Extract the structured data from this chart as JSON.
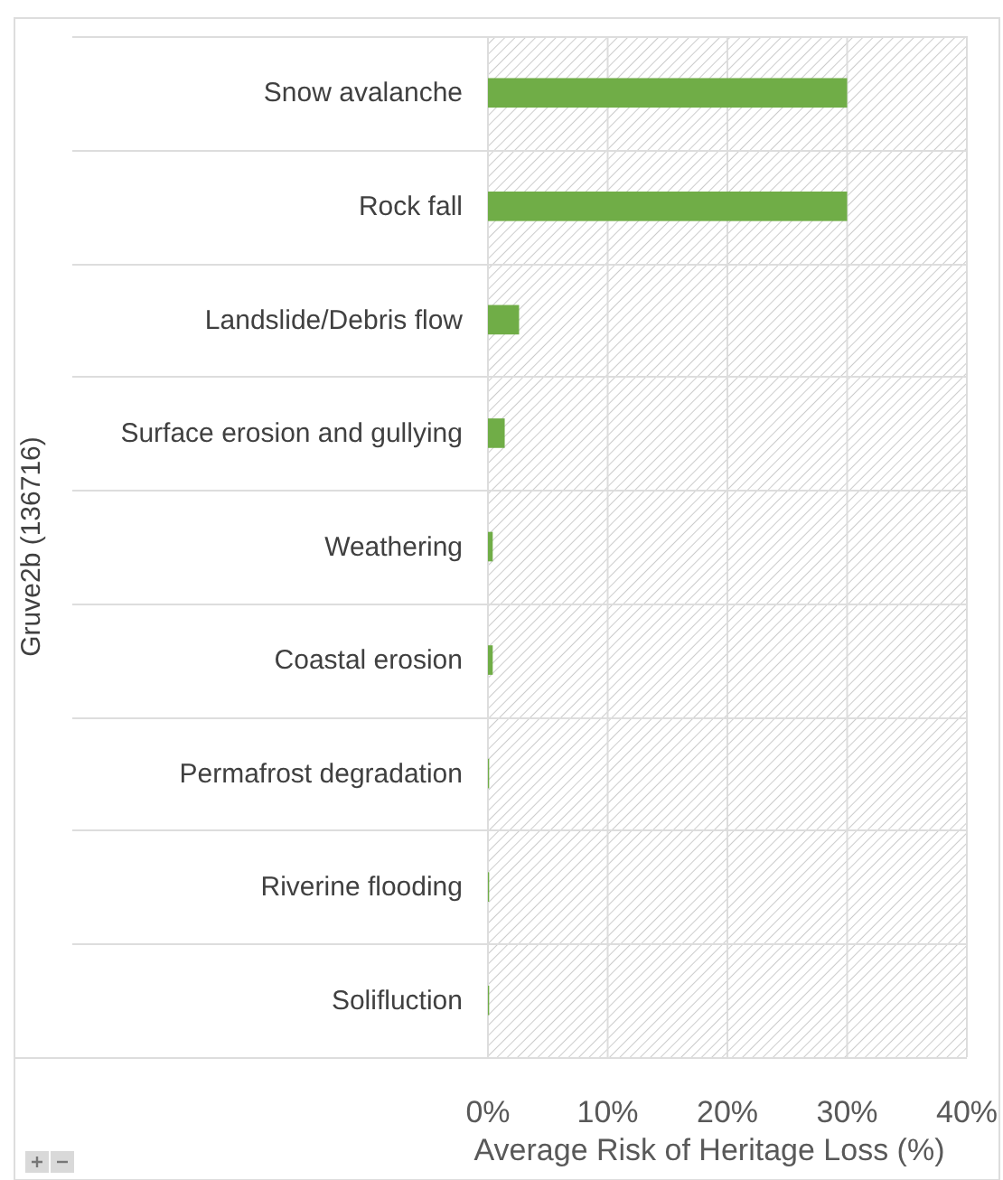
{
  "chart_data": {
    "type": "bar",
    "orientation": "horizontal",
    "ylabel": "Gruve2b (136716)",
    "xlabel": "Average Risk of Heritage Loss (%)",
    "categories": [
      "Snow avalanche",
      "Rock fall",
      "Landslide/Debris flow",
      "Surface erosion and gullying",
      "Weathering",
      "Coastal erosion",
      "Permafrost degradation",
      "Riverine flooding",
      "Solifluction"
    ],
    "values": [
      30,
      30,
      2.6,
      1.4,
      0.4,
      0.4,
      0.1,
      0.1,
      0.1
    ],
    "color": "#70ad47",
    "xlim": [
      0,
      40
    ],
    "xticks": [
      {
        "value": 0,
        "label": "0%"
      },
      {
        "value": 10,
        "label": "10%"
      },
      {
        "value": 20,
        "label": "20%"
      },
      {
        "value": 30,
        "label": "30%"
      },
      {
        "value": 40,
        "label": "40%"
      }
    ],
    "grid": "x"
  }
}
